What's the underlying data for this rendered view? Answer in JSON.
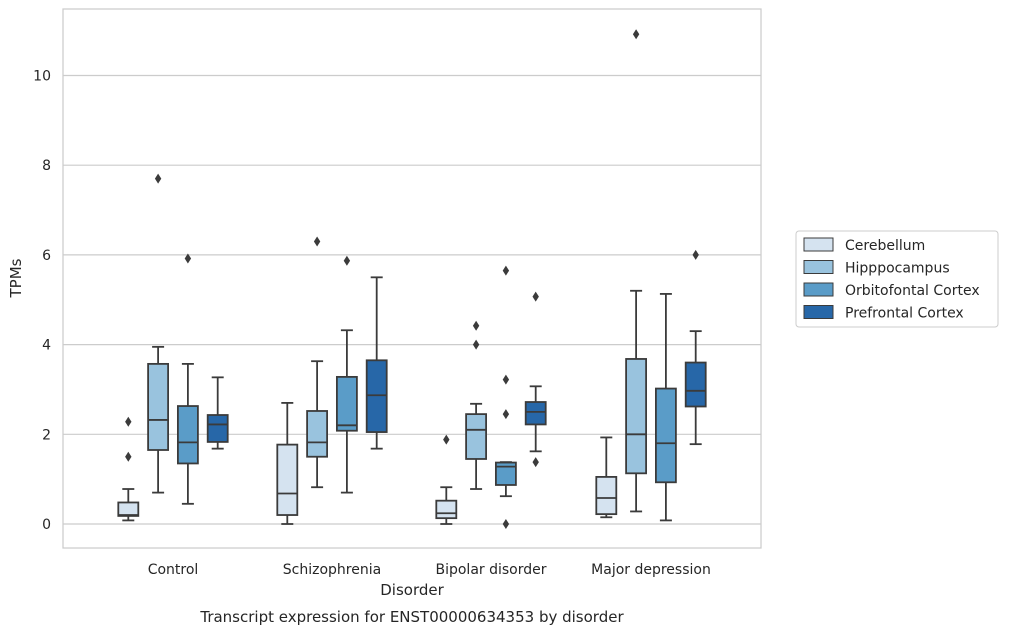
{
  "chart_data": {
    "type": "boxplot",
    "title": "Transcript expression for ENST00000634353 by disorder",
    "xlabel": "Disorder",
    "ylabel": "TPMs",
    "ylim": [
      -0.5,
      11.5
    ],
    "yticks": [
      0,
      2,
      4,
      6,
      8,
      10
    ],
    "grid": "horizontal",
    "legend_position": "right",
    "categories": [
      "Control",
      "Schizophrenia",
      "Bipolar disorder",
      "Major depression"
    ],
    "series": [
      {
        "name": "Cerebellum",
        "color": "#d5e3f0",
        "boxes": [
          {
            "whislo": 0.08,
            "q1": 0.18,
            "med": 0.2,
            "q3": 0.48,
            "whishi": 0.78,
            "fliers": [
              1.5,
              2.28
            ]
          },
          {
            "whislo": 0.0,
            "q1": 0.2,
            "med": 0.68,
            "q3": 1.77,
            "whishi": 2.7,
            "fliers": []
          },
          {
            "whislo": 0.0,
            "q1": 0.13,
            "med": 0.24,
            "q3": 0.52,
            "whishi": 0.82,
            "fliers": [
              1.88
            ]
          },
          {
            "whislo": 0.15,
            "q1": 0.22,
            "med": 0.58,
            "q3": 1.05,
            "whishi": 1.93,
            "fliers": []
          }
        ]
      },
      {
        "name": "Hipppocampus",
        "color": "#99c3de",
        "boxes": [
          {
            "whislo": 0.7,
            "q1": 1.65,
            "med": 2.32,
            "q3": 3.57,
            "whishi": 3.95,
            "fliers": [
              7.7
            ]
          },
          {
            "whislo": 0.82,
            "q1": 1.5,
            "med": 1.82,
            "q3": 2.52,
            "whishi": 3.63,
            "fliers": [
              6.3
            ]
          },
          {
            "whislo": 0.78,
            "q1": 1.45,
            "med": 2.1,
            "q3": 2.45,
            "whishi": 2.68,
            "fliers": [
              4.0,
              4.42
            ]
          },
          {
            "whislo": 0.28,
            "q1": 1.13,
            "med": 2.0,
            "q3": 3.68,
            "whishi": 5.2,
            "fliers": [
              10.92
            ]
          }
        ]
      },
      {
        "name": "Orbitofontal Cortex",
        "color": "#5a9cc8",
        "boxes": [
          {
            "whislo": 0.45,
            "q1": 1.35,
            "med": 1.82,
            "q3": 2.63,
            "whishi": 3.57,
            "fliers": [
              5.92
            ]
          },
          {
            "whislo": 0.7,
            "q1": 2.08,
            "med": 2.2,
            "q3": 3.28,
            "whishi": 4.32,
            "fliers": [
              5.87
            ]
          },
          {
            "whislo": 0.62,
            "q1": 0.87,
            "med": 1.28,
            "q3": 1.37,
            "whishi": 1.38,
            "fliers": [
              0.0,
              2.45,
              3.22,
              5.65
            ]
          },
          {
            "whislo": 0.08,
            "q1": 0.93,
            "med": 1.8,
            "q3": 3.02,
            "whishi": 5.13,
            "fliers": []
          }
        ]
      },
      {
        "name": "Prefrontal Cortex",
        "color": "#2767a8",
        "boxes": [
          {
            "whislo": 1.68,
            "q1": 1.83,
            "med": 2.22,
            "q3": 2.43,
            "whishi": 3.27,
            "fliers": []
          },
          {
            "whislo": 1.68,
            "q1": 2.05,
            "med": 2.87,
            "q3": 3.65,
            "whishi": 5.5,
            "fliers": []
          },
          {
            "whislo": 1.62,
            "q1": 2.22,
            "med": 2.5,
            "q3": 2.72,
            "whishi": 3.07,
            "fliers": [
              1.38,
              5.07
            ]
          },
          {
            "whislo": 1.78,
            "q1": 2.62,
            "med": 2.97,
            "q3": 3.6,
            "whishi": 4.3,
            "fliers": [
              6.0
            ]
          }
        ]
      }
    ]
  }
}
